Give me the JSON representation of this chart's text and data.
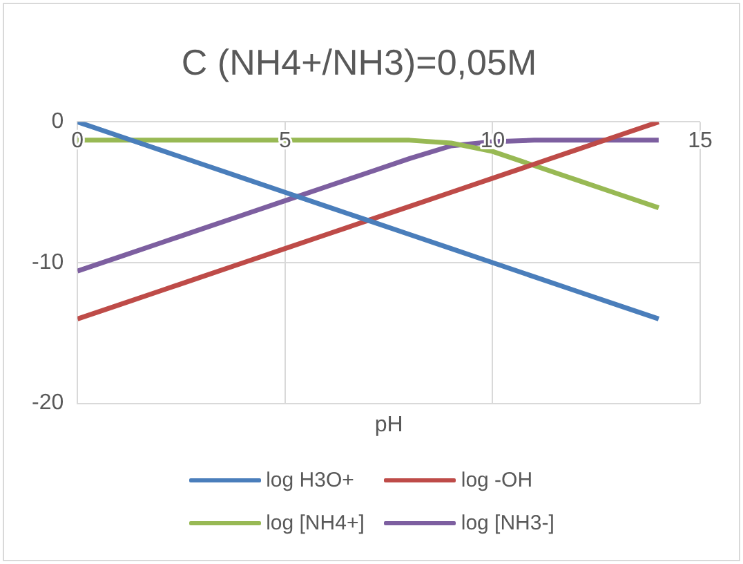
{
  "chart_data": {
    "type": "line",
    "title": "C (NH4+/NH3)=0,05M",
    "xlabel": "pH",
    "x": [
      0,
      1,
      2,
      3,
      4,
      5,
      6,
      7,
      8,
      9,
      10,
      11,
      12,
      13,
      14
    ],
    "series": [
      {
        "name": "log H3O+",
        "color": "#4a7ebb",
        "values": [
          0,
          -1,
          -2,
          -3,
          -4,
          -5,
          -6,
          -7,
          -8,
          -9,
          -10,
          -11,
          -12,
          -13,
          -14
        ]
      },
      {
        "name": "log -OH",
        "color": "#be4b48",
        "values": [
          -14,
          -13,
          -12,
          -11,
          -10,
          -9,
          -8,
          -7,
          -6,
          -5,
          -4,
          -3,
          -2,
          -1,
          0
        ]
      },
      {
        "name": "log [NH4+]",
        "color": "#98b954",
        "values": [
          -1.3,
          -1.3,
          -1.3,
          -1.3,
          -1.3,
          -1.3,
          -1.3,
          -1.3,
          -1.3,
          -1.5,
          -2.1,
          -3.1,
          -4.1,
          -5.1,
          -6.1
        ]
      },
      {
        "name": "log [NH3-]",
        "color": "#7d5fa0",
        "values": [
          -10.6,
          -9.6,
          -8.6,
          -7.6,
          -6.6,
          -5.6,
          -4.6,
          -3.6,
          -2.6,
          -1.7,
          -1.4,
          -1.3,
          -1.3,
          -1.3,
          -1.3
        ]
      }
    ],
    "xlim": [
      0,
      15
    ],
    "xticks": [
      0,
      5,
      10,
      15
    ],
    "ylim": [
      -20,
      0
    ],
    "yticks": [
      -20,
      -10,
      0
    ],
    "grid": true,
    "legend": "bottom",
    "marker": "none",
    "line_style": "solid"
  }
}
